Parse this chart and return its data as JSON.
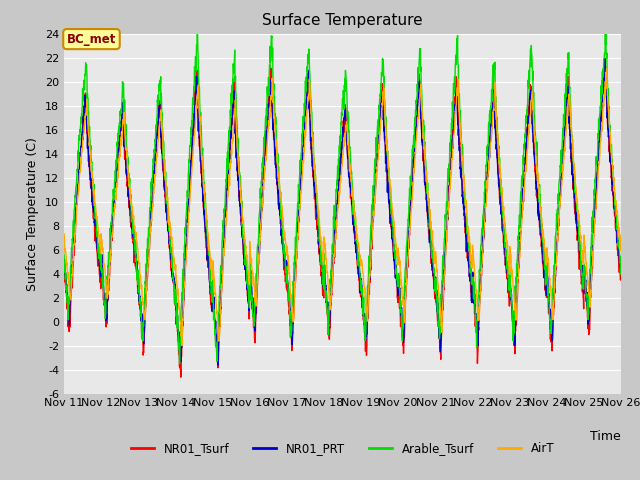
{
  "title": "Surface Temperature",
  "ylabel": "Surface Temperature (C)",
  "xlabel": "Time",
  "ylim": [
    -6,
    24
  ],
  "yticks": [
    -6,
    -4,
    -2,
    0,
    2,
    4,
    6,
    8,
    10,
    12,
    14,
    16,
    18,
    20,
    22,
    24
  ],
  "xtick_labels": [
    "Nov 11",
    "Nov 12",
    "Nov 13",
    "Nov 14",
    "Nov 15",
    "Nov 16",
    "Nov 17",
    "Nov 18",
    "Nov 19",
    "Nov 20",
    "Nov 21",
    "Nov 22",
    "Nov 23",
    "Nov 24",
    "Nov 25",
    "Nov 26"
  ],
  "colors": {
    "NR01_Tsurf": "#ff0000",
    "NR01_PRT": "#0000cc",
    "Arable_Tsurf": "#00dd00",
    "AirT": "#ffaa00"
  },
  "annotation_text": "BC_met",
  "annotation_bg": "#ffff99",
  "annotation_border": "#cc8800",
  "fig_bg": "#c8c8c8",
  "plot_bg": "#e8e8e8",
  "title_fontsize": 11,
  "tick_fontsize": 8,
  "label_fontsize": 9
}
